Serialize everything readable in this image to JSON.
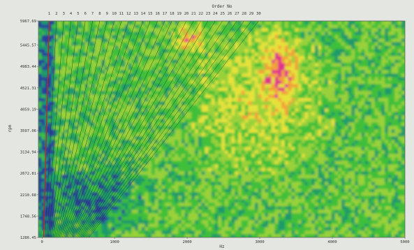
{
  "chart_data": {
    "type": "heatmap",
    "title": "",
    "top_axis_title": "Order No",
    "xlabel": "Hz",
    "ylabel": "rpm",
    "xlim": [
      -50,
      5000
    ],
    "ylim": [
      1286.45,
      5967.69
    ],
    "x_ticks": [
      "0",
      "1000",
      "2000",
      "3000",
      "4000",
      "5000"
    ],
    "y_ticks": [
      "5967.69",
      "5445.57",
      "4983.44",
      "4521.31",
      "4059.19",
      "3597.06",
      "3134.94",
      "2672.81",
      "2210.68",
      "1748.56",
      "1286.45"
    ],
    "order_numbers": [
      "1",
      "2",
      "3",
      "4",
      "5",
      "6",
      "7",
      "8",
      "9",
      "10",
      "11",
      "12",
      "13",
      "14",
      "15",
      "16",
      "17",
      "18",
      "19",
      "20",
      "21",
      "22",
      "23",
      "24",
      "25",
      "26",
      "27",
      "28",
      "29",
      "30"
    ],
    "colorscale": [
      "#2a3f9c",
      "#1f9a6a",
      "#3fbf3a",
      "#9ad13a",
      "#e6e23a",
      "#f2a13a",
      "#e0308c"
    ],
    "orders": [
      {
        "order": 1,
        "hz_at_max_rpm": 99.5
      },
      {
        "order": 30,
        "hz_at_max_rpm": 2984
      }
    ],
    "intensity_regions": [
      {
        "level": "high",
        "x_range": [
          1800,
          2300
        ],
        "y_range": [
          5200,
          5967.69
        ]
      },
      {
        "level": "high",
        "x_range": [
          3000,
          3600
        ],
        "y_range": [
          4000,
          5800
        ]
      },
      {
        "level": "medium",
        "x_range": [
          2000,
          4000
        ],
        "y_range": [
          2500,
          5967.69
        ]
      },
      {
        "level": "low",
        "x_range": [
          -50,
          1500
        ],
        "y_range": [
          1286.45,
          3000
        ]
      }
    ]
  }
}
